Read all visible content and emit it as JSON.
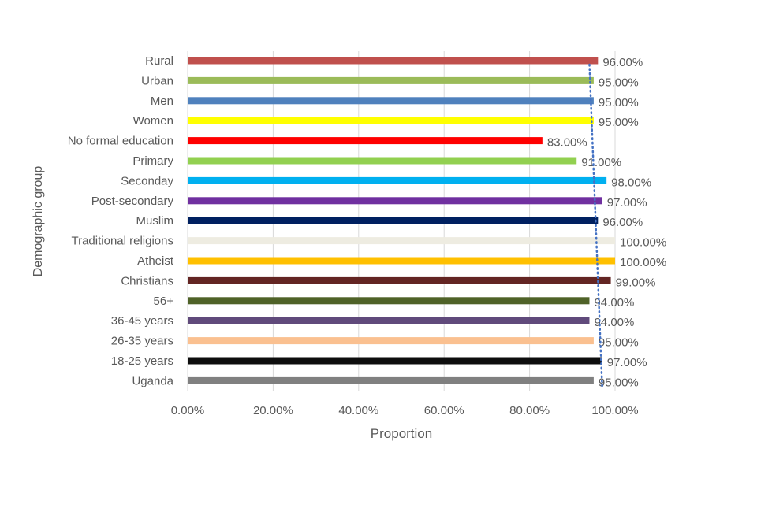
{
  "chart_data": {
    "type": "bar",
    "orientation": "horizontal",
    "title": "",
    "xlabel": "Proportion",
    "ylabel": "Demographic group",
    "xlim": [
      0,
      1
    ],
    "xticks": [
      "0.00%",
      "20.00%",
      "40.00%",
      "60.00%",
      "80.00%",
      "100.00%"
    ],
    "grid": true,
    "categories": [
      "Rural",
      "Urban",
      "Men",
      "Women",
      "No formal education",
      "Primary",
      "Seconday",
      "Post-secondary",
      "Muslim",
      "Traditional religions",
      "Atheist",
      "Christians",
      "56+",
      "36-45 years",
      "26-35 years",
      "18-25 years",
      "Uganda"
    ],
    "values": [
      0.96,
      0.95,
      0.95,
      0.95,
      0.83,
      0.91,
      0.98,
      0.97,
      0.96,
      1.0,
      1.0,
      0.99,
      0.94,
      0.94,
      0.95,
      0.97,
      0.95
    ],
    "labels": [
      "96.00%",
      "95.00%",
      "95.00%",
      "95.00%",
      "83.00%",
      "91.00%",
      "98.00%",
      "97.00%",
      "96.00%",
      "100.00%",
      "100.00%",
      "99.00%",
      "94.00%",
      "94.00%",
      "95.00%",
      "97.00%",
      "95.00%"
    ],
    "colors": [
      "#c0504d",
      "#9bbb59",
      "#4f81bd",
      "#ffff00",
      "#ff0000",
      "#92d050",
      "#00b0f0",
      "#7030a0",
      "#002060",
      "#eeece1",
      "#ffc000",
      "#632523",
      "#4f6228",
      "#604a7b",
      "#fac090",
      "#0d0d0d",
      "#808080"
    ],
    "trendline": {
      "style": "dotted",
      "color": "#4472c4",
      "from_value": 0.94,
      "to_value": 0.97
    }
  }
}
